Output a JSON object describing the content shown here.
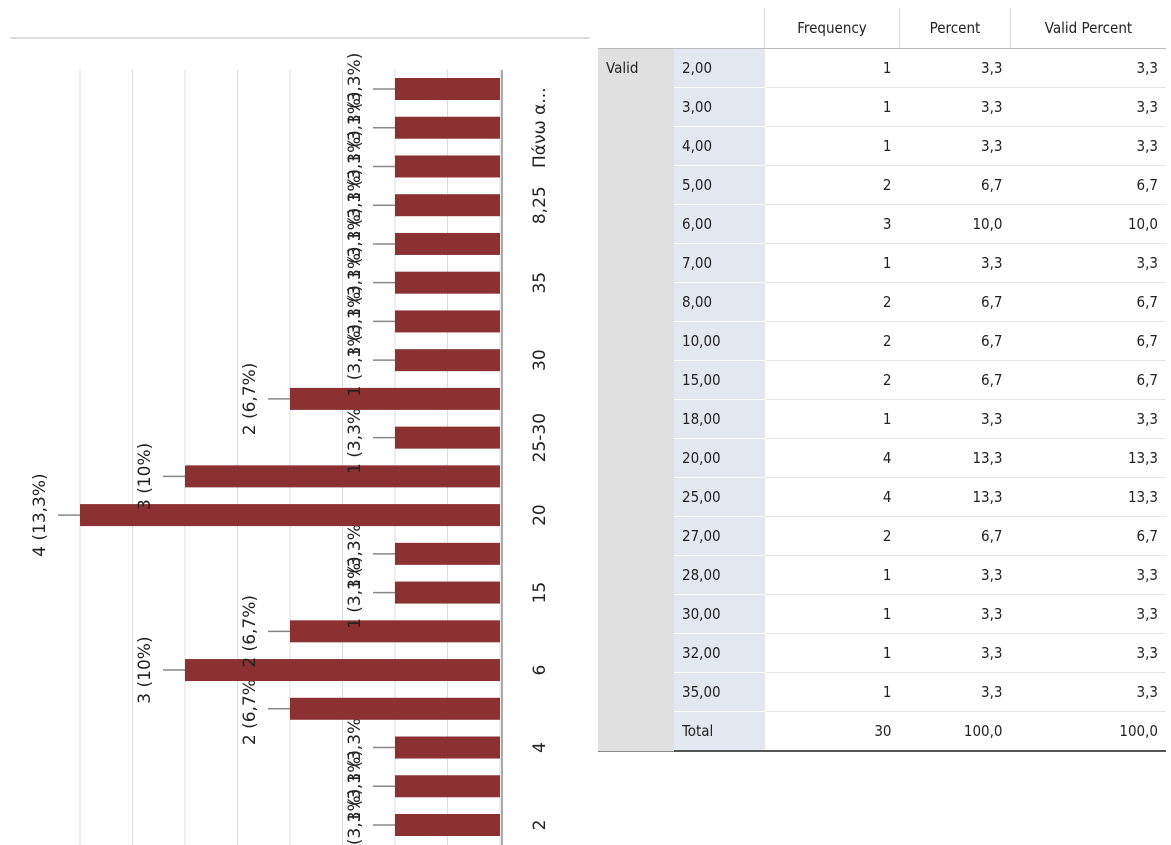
{
  "chart_data": {
    "type": "bar",
    "categories": [
      "2",
      null,
      "4",
      null,
      "6",
      null,
      "15",
      null,
      "20",
      null,
      "25-30",
      null,
      "30",
      null,
      "35",
      null,
      "8,25",
      null,
      "Πάνω α...",
      null
    ],
    "values": [
      1,
      1,
      1,
      2,
      3,
      2,
      1,
      1,
      4,
      3,
      1,
      2,
      1,
      1,
      1,
      1,
      1,
      1,
      1,
      1
    ],
    "value_labels": [
      "1 (3,3%)",
      "1 (3,3%)",
      "1 (3,3%)",
      "2 (6,7%)",
      "3 (10%)",
      "2 (6,7%)",
      "1 (3,3%)",
      "1 (3,3%)",
      "4 (13,3%)",
      "3 (10%)",
      "1 (3,3%)",
      "2 (6,7%)",
      "1 (3,3%)",
      "1 (3,3%)",
      "1 (3,3%)",
      "1 (3,3%)",
      "1 (3,3%)",
      "1 (3,3%)",
      "1 (3,3%)",
      "1 (3,3%)"
    ],
    "color": "#8b3131",
    "ylim": [
      0,
      4
    ],
    "yticks": [
      0,
      0.5,
      1,
      1.5,
      2,
      2.5,
      3,
      3.5,
      4
    ],
    "grid": true
  },
  "table": {
    "columns": [
      "Frequency",
      "Percent",
      "Valid Percent"
    ],
    "group": "Valid",
    "rows": [
      [
        "2,00",
        1,
        "3,3",
        "3,3"
      ],
      [
        "3,00",
        1,
        "3,3",
        "3,3"
      ],
      [
        "4,00",
        1,
        "3,3",
        "3,3"
      ],
      [
        "5,00",
        2,
        "6,7",
        "6,7"
      ],
      [
        "6,00",
        3,
        "10,0",
        "10,0"
      ],
      [
        "7,00",
        1,
        "3,3",
        "3,3"
      ],
      [
        "8,00",
        2,
        "6,7",
        "6,7"
      ],
      [
        "10,00",
        2,
        "6,7",
        "6,7"
      ],
      [
        "15,00",
        2,
        "6,7",
        "6,7"
      ],
      [
        "18,00",
        1,
        "3,3",
        "3,3"
      ],
      [
        "20,00",
        4,
        "13,3",
        "13,3"
      ],
      [
        "25,00",
        4,
        "13,3",
        "13,3"
      ],
      [
        "27,00",
        2,
        "6,7",
        "6,7"
      ],
      [
        "28,00",
        1,
        "3,3",
        "3,3"
      ],
      [
        "30,00",
        1,
        "3,3",
        "3,3"
      ],
      [
        "32,00",
        1,
        "3,3",
        "3,3"
      ],
      [
        "35,00",
        1,
        "3,3",
        "3,3"
      ]
    ],
    "total": [
      "Total",
      30,
      "100,0",
      "100,0"
    ]
  }
}
